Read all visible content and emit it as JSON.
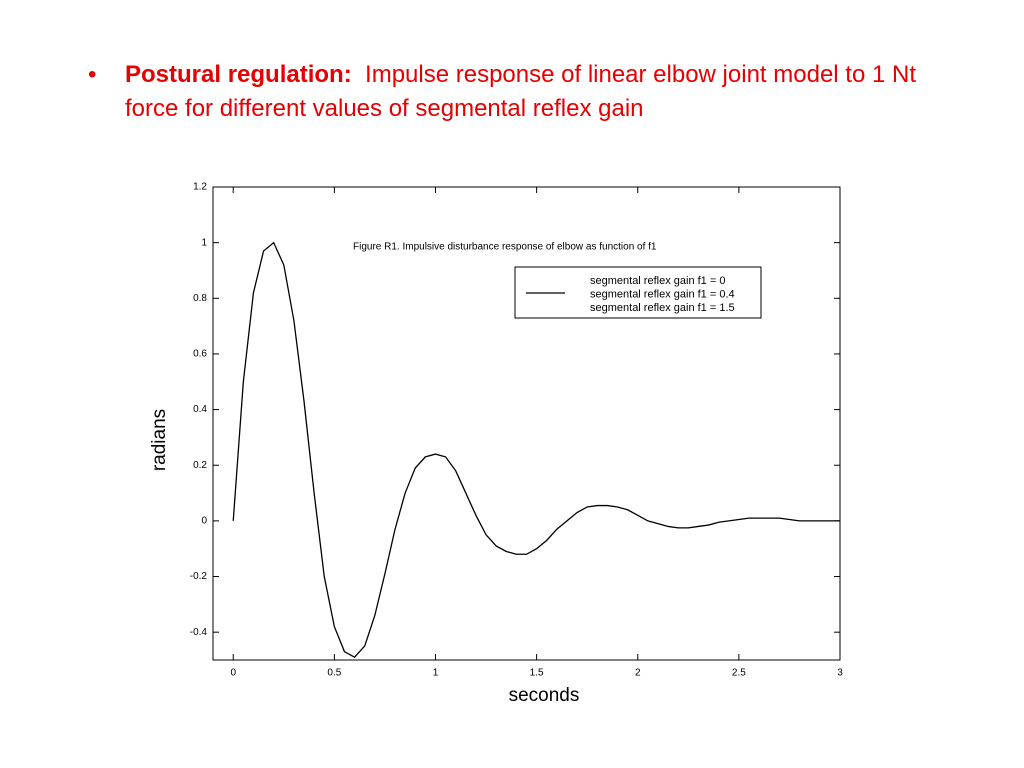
{
  "header": {
    "bullet": "•",
    "lead": "Postural regulation:",
    "text": "Impulse response of linear elbow joint model to 1 Nt force for different values of segmental reflex gain"
  },
  "chart_data": {
    "type": "line",
    "title": "Figure R1.  Impulsive disturbance response of elbow as function of f1",
    "xlabel": "seconds",
    "ylabel": "radians",
    "x": [
      0,
      0.05,
      0.1,
      0.15,
      0.2,
      0.25,
      0.3,
      0.35,
      0.4,
      0.45,
      0.5,
      0.55,
      0.6,
      0.65,
      0.7,
      0.75,
      0.8,
      0.85,
      0.9,
      0.95,
      1.0,
      1.05,
      1.1,
      1.15,
      1.2,
      1.25,
      1.3,
      1.35,
      1.4,
      1.45,
      1.5,
      1.55,
      1.6,
      1.65,
      1.7,
      1.75,
      1.8,
      1.85,
      1.9,
      1.95,
      2.0,
      2.05,
      2.1,
      2.15,
      2.2,
      2.25,
      2.3,
      2.35,
      2.4,
      2.45,
      2.5,
      2.55,
      2.6,
      2.65,
      2.7,
      2.75,
      2.8,
      2.85,
      2.9,
      2.95,
      3.0
    ],
    "series": [
      {
        "name": "segmental reflex gain f1 = 0",
        "color": "#000000",
        "values": [
          0,
          0.5,
          0.82,
          0.97,
          1.0,
          0.92,
          0.72,
          0.43,
          0.1,
          -0.2,
          -0.38,
          -0.47,
          -0.49,
          -0.45,
          -0.34,
          -0.19,
          -0.03,
          0.1,
          0.19,
          0.23,
          0.24,
          0.23,
          0.18,
          0.1,
          0.02,
          -0.05,
          -0.09,
          -0.11,
          -0.12,
          -0.12,
          -0.1,
          -0.07,
          -0.03,
          0.0,
          0.03,
          0.05,
          0.055,
          0.055,
          0.05,
          0.04,
          0.02,
          0.0,
          -0.01,
          -0.02,
          -0.025,
          -0.025,
          -0.02,
          -0.015,
          -0.005,
          0.0,
          0.005,
          0.01,
          0.01,
          0.01,
          0.01,
          0.005,
          0.0,
          0.0,
          0.0,
          0.0,
          0.0
        ]
      }
    ],
    "legend_extra": [
      "segmental reflex gain f1 = 0.4",
      "segmental reflex gain f1 = 1.5"
    ],
    "xlim": [
      -0.1,
      3
    ],
    "ylim": [
      -0.5,
      1.2
    ],
    "xticks": [
      0,
      0.5,
      1,
      1.5,
      2,
      2.5,
      3
    ],
    "yticks": [
      -0.4,
      -0.2,
      0,
      0.2,
      0.4,
      0.6,
      0.8,
      1,
      1.2
    ],
    "grid": false
  }
}
